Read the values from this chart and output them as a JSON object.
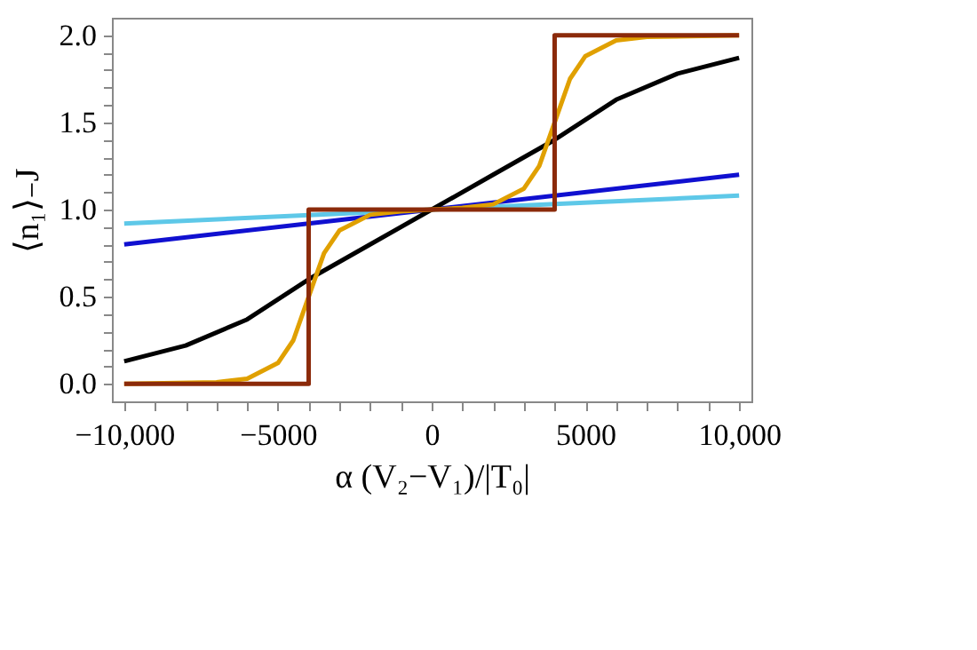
{
  "chart_data": {
    "type": "line",
    "xlabel": "α (V₂−V₁)/|T₀|",
    "ylabel": "⟨n₁⟩₋J",
    "xlim": [
      -10400,
      10400
    ],
    "ylim": [
      -0.1,
      2.1
    ],
    "xticks": [
      {
        "value": -10000,
        "label": "−10,000"
      },
      {
        "value": -9000,
        "label": null
      },
      {
        "value": -8000,
        "label": null
      },
      {
        "value": -7000,
        "label": null
      },
      {
        "value": -6000,
        "label": null
      },
      {
        "value": -5000,
        "label": "−5000"
      },
      {
        "value": -4000,
        "label": null
      },
      {
        "value": -3000,
        "label": null
      },
      {
        "value": -2000,
        "label": null
      },
      {
        "value": -1000,
        "label": null
      },
      {
        "value": 0,
        "label": "0"
      },
      {
        "value": 1000,
        "label": null
      },
      {
        "value": 2000,
        "label": null
      },
      {
        "value": 3000,
        "label": null
      },
      {
        "value": 4000,
        "label": null
      },
      {
        "value": 5000,
        "label": "5000"
      },
      {
        "value": 6000,
        "label": null
      },
      {
        "value": 7000,
        "label": null
      },
      {
        "value": 8000,
        "label": null
      },
      {
        "value": 9000,
        "label": null
      },
      {
        "value": 10000,
        "label": "10,000"
      }
    ],
    "yticks": [
      {
        "value": 0,
        "label": "0.0"
      },
      {
        "value": 0.1,
        "label": null
      },
      {
        "value": 0.2,
        "label": null
      },
      {
        "value": 0.3,
        "label": null
      },
      {
        "value": 0.4,
        "label": null
      },
      {
        "value": 0.5,
        "label": "0.5"
      },
      {
        "value": 0.6,
        "label": null
      },
      {
        "value": 0.7,
        "label": null
      },
      {
        "value": 0.8,
        "label": null
      },
      {
        "value": 0.9,
        "label": null
      },
      {
        "value": 1.0,
        "label": "1.0"
      },
      {
        "value": 1.1,
        "label": null
      },
      {
        "value": 1.2,
        "label": null
      },
      {
        "value": 1.3,
        "label": null
      },
      {
        "value": 1.4,
        "label": null
      },
      {
        "value": 1.5,
        "label": "1.5"
      },
      {
        "value": 1.6,
        "label": null
      },
      {
        "value": 1.7,
        "label": null
      },
      {
        "value": 1.8,
        "label": null
      },
      {
        "value": 1.9,
        "label": null
      },
      {
        "value": 2.0,
        "label": "2.0"
      }
    ],
    "grid": false,
    "legend": false,
    "marker": "none",
    "line_style": "solid",
    "series": [
      {
        "color": "#5ec8e8",
        "x": [
          -10000,
          0,
          10000
        ],
        "values": [
          0.92,
          1.0,
          1.08
        ]
      },
      {
        "color": "#1010d0",
        "x": [
          -10000,
          0,
          10000
        ],
        "values": [
          0.8,
          1.0,
          1.2
        ]
      },
      {
        "color": "#000000",
        "x": [
          -10000,
          -8000,
          -6000,
          -4000,
          -2000,
          0,
          2000,
          4000,
          6000,
          8000,
          10000
        ],
        "values": [
          0.13,
          0.22,
          0.37,
          0.6,
          0.8,
          1.0,
          1.2,
          1.4,
          1.63,
          1.78,
          1.87
        ]
      },
      {
        "color": "#e0a000",
        "x": [
          -10000,
          -7000,
          -6000,
          -5000,
          -4500,
          -4000,
          -3500,
          -3000,
          -2000,
          -1000,
          0,
          1000,
          2000,
          3000,
          3500,
          4000,
          4500,
          5000,
          6000,
          7000,
          10000
        ],
        "values": [
          0.0,
          0.01,
          0.03,
          0.12,
          0.25,
          0.5,
          0.75,
          0.88,
          0.97,
          0.99,
          1.0,
          1.01,
          1.03,
          1.12,
          1.25,
          1.5,
          1.75,
          1.88,
          1.97,
          1.99,
          2.0
        ]
      },
      {
        "color": "#8b2a0a",
        "x": [
          -10000,
          -4000,
          -4000,
          4000,
          4000,
          10000
        ],
        "values": [
          0.0,
          0.0,
          1.0,
          1.0,
          2.0,
          2.0
        ]
      }
    ]
  }
}
